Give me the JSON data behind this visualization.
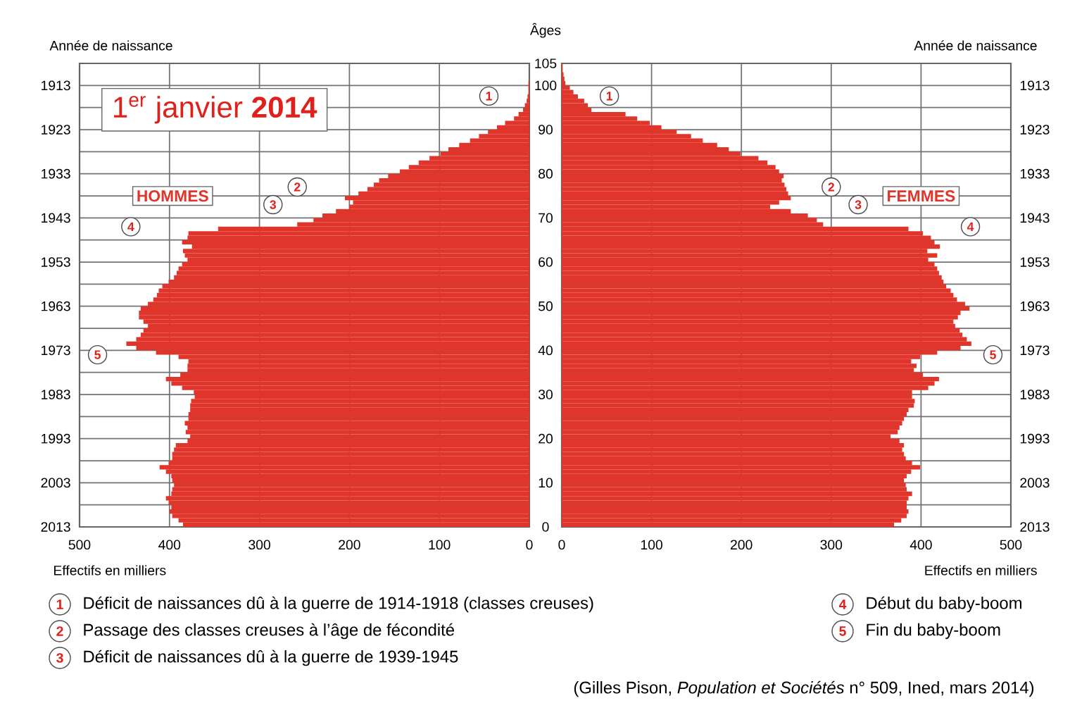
{
  "chart_data": [
    {
      "type": "bar",
      "orientation": "horizontal",
      "title": "1$^{er}$ janvier **2014**",
      "xlabel": "Effectifs en milliers",
      "ylabel": "Âges",
      "y2label": "Année de naissance",
      "x": [
        0,
        1,
        2,
        3,
        4,
        5,
        6,
        7,
        8,
        9,
        10,
        11,
        12,
        13,
        14,
        15,
        16,
        17,
        18,
        19,
        20,
        21,
        22,
        23,
        24,
        25,
        26,
        27,
        28,
        29,
        30,
        31,
        32,
        33,
        34,
        35,
        36,
        37,
        38,
        39,
        40,
        41,
        42,
        43,
        44,
        45,
        46,
        47,
        48,
        49,
        50,
        51,
        52,
        53,
        54,
        55,
        56,
        57,
        58,
        59,
        60,
        61,
        62,
        63,
        64,
        65,
        66,
        67,
        68,
        69,
        70,
        71,
        72,
        73,
        74,
        75,
        76,
        77,
        78,
        79,
        80,
        81,
        82,
        83,
        84,
        85,
        86,
        87,
        88,
        89,
        90,
        91,
        92,
        93,
        94,
        95,
        96,
        97,
        98,
        99,
        100,
        101,
        102,
        103,
        104
      ],
      "series": [
        {
          "name": "HOMMES",
          "color": "#e0352b",
          "values": [
            385,
            390,
            397,
            400,
            398,
            401,
            404,
            398,
            397,
            395,
            397,
            398,
            404,
            411,
            401,
            397,
            397,
            395,
            393,
            380,
            377,
            382,
            380,
            383,
            379,
            379,
            377,
            377,
            376,
            372,
            373,
            386,
            398,
            404,
            388,
            380,
            380,
            379,
            390,
            415,
            437,
            448,
            437,
            432,
            429,
            424,
            429,
            434,
            434,
            432,
            424,
            418,
            414,
            412,
            408,
            401,
            395,
            392,
            390,
            386,
            380,
            383,
            385,
            375,
            386,
            380,
            379,
            346,
            258,
            240,
            230,
            215,
            200,
            196,
            205,
            190,
            180,
            173,
            167,
            157,
            144,
            134,
            123,
            111,
            99,
            90,
            78,
            66,
            56,
            46,
            36,
            27,
            17,
            12,
            7,
            5,
            3,
            2,
            1,
            1,
            1,
            0,
            0,
            0,
            0
          ]
        }
      ],
      "xlim": [
        500,
        0
      ],
      "xticks": [
        500,
        400,
        300,
        200,
        100,
        0
      ],
      "ylim": [
        0,
        105
      ],
      "yticks": [
        0,
        10,
        20,
        30,
        40,
        50,
        60,
        70,
        80,
        90,
        100,
        105
      ],
      "y2lim": [
        2013,
        1908
      ],
      "y2ticks": [
        2013,
        {
          "value": 2008,
          "label": null
        },
        2003,
        {
          "value": 1998,
          "label": null
        },
        1993,
        {
          "value": 1988,
          "label": null
        },
        1983,
        {
          "value": 1978,
          "label": null
        },
        1973,
        {
          "value": 1968,
          "label": null
        },
        1963,
        {
          "value": 1958,
          "label": null
        },
        1953,
        {
          "value": 1948,
          "label": null
        },
        1943,
        {
          "value": 1938,
          "label": null
        },
        1933,
        {
          "value": 1928,
          "label": null
        },
        1923,
        {
          "value": 1918,
          "label": null
        },
        1913
      ],
      "grid": true,
      "annotations": [
        {
          "text": "1",
          "x": 45,
          "y": 97.6
        },
        {
          "text": "2",
          "x": 258,
          "y": 77
        },
        {
          "text": "3",
          "x": 285,
          "y": 73
        },
        {
          "text": "4",
          "x": 443,
          "y": 68
        },
        {
          "text": "5",
          "x": 480,
          "y": 39
        },
        "Déficit de naissances dû à la guerre de 1914-1918 (classes creuses)",
        "Passage des classes creuses à l’âge de fécondité",
        "Déficit de naissances dû à la guerre de 1939-1945",
        "Début du baby-boom",
        "Fin du baby-boom",
        "(Gilles Pison, *Population et Sociétés* n° 509, Ined, mars 2014)"
      ]
    },
    {
      "type": "bar",
      "orientation": "horizontal",
      "xlabel": "Effectifs en milliers",
      "y2label": "Année de naissance",
      "x": [
        0,
        1,
        2,
        3,
        4,
        5,
        6,
        7,
        8,
        9,
        10,
        11,
        12,
        13,
        14,
        15,
        16,
        17,
        18,
        19,
        20,
        21,
        22,
        23,
        24,
        25,
        26,
        27,
        28,
        29,
        30,
        31,
        32,
        33,
        34,
        35,
        36,
        37,
        38,
        39,
        40,
        41,
        42,
        43,
        44,
        45,
        46,
        47,
        48,
        49,
        50,
        51,
        52,
        53,
        54,
        55,
        56,
        57,
        58,
        59,
        60,
        61,
        62,
        63,
        64,
        65,
        66,
        67,
        68,
        69,
        70,
        71,
        72,
        73,
        74,
        75,
        76,
        77,
        78,
        79,
        80,
        81,
        82,
        83,
        84,
        85,
        86,
        87,
        88,
        89,
        90,
        91,
        92,
        93,
        94,
        95,
        96,
        97,
        98,
        99,
        100,
        101,
        102,
        103,
        104
      ],
      "series": [
        {
          "name": "FEMMES",
          "color": "#e0352b",
          "values": [
            370,
            378,
            384,
            386,
            384,
            384,
            386,
            390,
            384,
            383,
            381,
            384,
            389,
            399,
            390,
            383,
            381,
            379,
            381,
            376,
            366,
            374,
            376,
            379,
            381,
            384,
            386,
            392,
            393,
            390,
            390,
            408,
            415,
            420,
            402,
            392,
            395,
            389,
            399,
            418,
            444,
            456,
            451,
            446,
            443,
            438,
            436,
            441,
            444,
            454,
            449,
            440,
            436,
            433,
            428,
            425,
            423,
            420,
            418,
            415,
            408,
            418,
            407,
            421,
            415,
            411,
            402,
            386,
            291,
            284,
            274,
            255,
            232,
            242,
            255,
            252,
            250,
            248,
            245,
            247,
            242,
            238,
            229,
            219,
            199,
            186,
            173,
            157,
            144,
            128,
            111,
            98,
            84,
            71,
            33,
            29,
            25,
            18,
            13,
            9,
            4,
            3,
            2,
            1,
            1
          ]
        }
      ],
      "xlim": [
        0,
        500
      ],
      "xticks": [
        0,
        100,
        200,
        300,
        400,
        500
      ],
      "ylim": [
        0,
        105
      ],
      "y2lim": [
        2013,
        1908
      ],
      "y2ticks": [
        2013,
        {
          "value": 2008,
          "label": null
        },
        2003,
        {
          "value": 1998,
          "label": null
        },
        1993,
        {
          "value": 1988,
          "label": null
        },
        1983,
        {
          "value": 1978,
          "label": null
        },
        1973,
        {
          "value": 1968,
          "label": null
        },
        1963,
        {
          "value": 1958,
          "label": null
        },
        1953,
        {
          "value": 1948,
          "label": null
        },
        1943,
        {
          "value": 1938,
          "label": null
        },
        1933,
        {
          "value": 1928,
          "label": null
        },
        1923,
        {
          "value": 1918,
          "label": null
        },
        1913
      ],
      "grid": true,
      "annotations": [
        {
          "text": "1",
          "x": 53,
          "y": 97.6
        },
        {
          "text": "2",
          "x": 300,
          "y": 77
        },
        {
          "text": "3",
          "x": 330,
          "y": 73
        },
        {
          "text": "4",
          "x": 455,
          "y": 68
        },
        {
          "text": "5",
          "x": 480,
          "y": 39
        }
      ]
    }
  ]
}
